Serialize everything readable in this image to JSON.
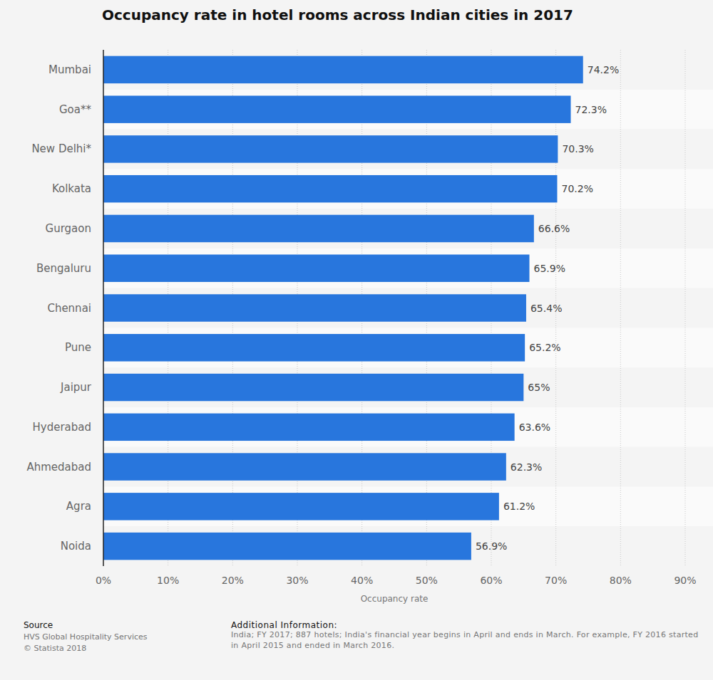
{
  "chart_data": {
    "type": "bar",
    "orientation": "horizontal",
    "title": "Occupancy rate in hotel rooms across Indian cities in 2017",
    "x_label": "Occupancy rate",
    "categories": [
      "Mumbai",
      "Goa**",
      "New Delhi*",
      "Kolkata",
      "Gurgaon",
      "Bengaluru",
      "Chennai",
      "Pune",
      "Jaipur",
      "Hyderabad",
      "Ahmedabad",
      "Agra",
      "Noida"
    ],
    "values": [
      74.2,
      72.3,
      70.3,
      70.2,
      66.6,
      65.9,
      65.4,
      65.2,
      65,
      63.6,
      62.3,
      61.2,
      56.9
    ],
    "value_labels": [
      "74.2%",
      "72.3%",
      "70.3%",
      "70.2%",
      "66.6%",
      "65.9%",
      "65.4%",
      "65.2%",
      "65%",
      "63.6%",
      "62.3%",
      "61.2%",
      "56.9%"
    ],
    "data_labels": true,
    "color": "#2876dd",
    "xlim": [
      0,
      90
    ],
    "xticks": [
      {
        "value": 0,
        "label": "0%"
      },
      {
        "value": 10,
        "label": "10%"
      },
      {
        "value": 20,
        "label": "20%"
      },
      {
        "value": 30,
        "label": "30%"
      },
      {
        "value": 40,
        "label": "40%"
      },
      {
        "value": 50,
        "label": "50%"
      },
      {
        "value": 60,
        "label": "60%"
      },
      {
        "value": 70,
        "label": "70%"
      },
      {
        "value": 80,
        "label": "80%"
      },
      {
        "value": 90,
        "label": "90%"
      }
    ],
    "grid": true,
    "source_label": "Source",
    "source": "HVS Global Hospitality Services",
    "copyright": "© Statista 2018",
    "additional_info_label": "Additional Information:",
    "additional_info": "India; FY 2017; 887 hotels; India's financial year begins in April and ends in March. For example, FY 2016 started in April 2015 and ended in March 2016."
  }
}
